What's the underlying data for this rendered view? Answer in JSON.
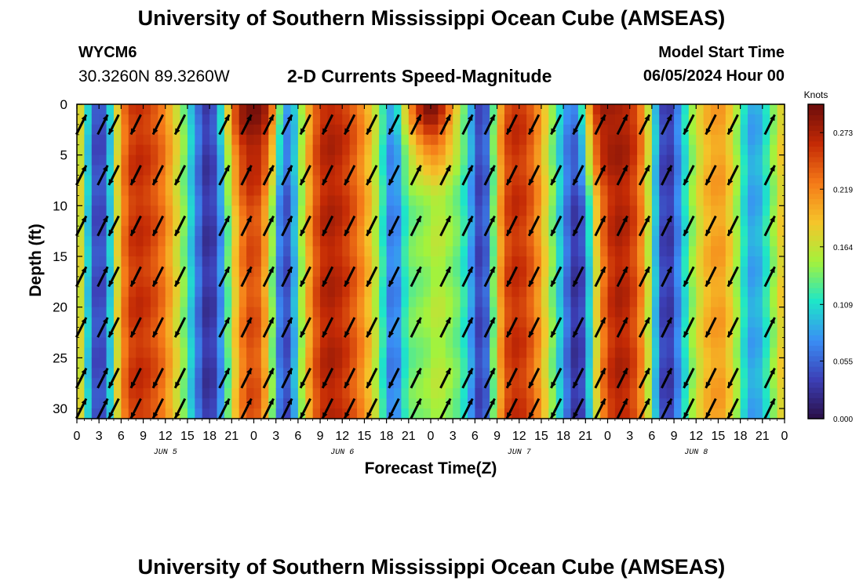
{
  "header": {
    "title": "University of Southern Mississippi Ocean Cube (AMSEAS)",
    "station_id": "WYCM6",
    "coordinates": "30.3260N  89.3260W",
    "subtitle": "2-D Currents Speed-Magnitude",
    "model_start_label": "Model Start Time",
    "model_start_value": "06/05/2024 Hour 00"
  },
  "footer": {
    "title": "University of Southern Mississippi Ocean Cube (AMSEAS)"
  },
  "chart_data": {
    "type": "heatmap",
    "title": "2-D Currents Speed-Magnitude",
    "xlabel": "Forecast Time(Z)",
    "ylabel": "Depth (ft)",
    "xlim": [
      0,
      96
    ],
    "ylim": [
      0,
      31
    ],
    "y_inverted": true,
    "x_tick_hours": [
      0,
      3,
      6,
      9,
      12,
      15,
      18,
      21,
      24,
      27,
      30,
      33,
      36,
      39,
      42,
      45,
      48,
      51,
      54,
      57,
      60,
      63,
      66,
      69,
      72,
      75,
      78,
      81,
      84,
      87,
      90,
      93,
      96
    ],
    "x_tick_labels": [
      "0",
      "3",
      "6",
      "9",
      "12",
      "15",
      "18",
      "21",
      "0",
      "3",
      "6",
      "9",
      "12",
      "15",
      "18",
      "21",
      "0",
      "3",
      "6",
      "9",
      "12",
      "15",
      "18",
      "21",
      "0",
      "3",
      "6",
      "9",
      "12",
      "15",
      "18",
      "21",
      "0"
    ],
    "day_labels": [
      {
        "hour": 12,
        "label": "JUN 5"
      },
      {
        "hour": 36,
        "label": "JUN 6"
      },
      {
        "hour": 60,
        "label": "JUN 7"
      },
      {
        "hour": 84,
        "label": "JUN 8"
      }
    ],
    "y_ticks": [
      0,
      5,
      10,
      15,
      20,
      25,
      30
    ],
    "colorbar": {
      "label": "Knots",
      "min": 0.0,
      "max": 0.3,
      "ticks": [
        0.0,
        0.055,
        0.109,
        0.164,
        0.219,
        0.273
      ],
      "tick_labels": [
        "0.000",
        "0.055",
        "0.109",
        "0.164",
        "0.219",
        "0.273"
      ],
      "colors": [
        "#2a0f47",
        "#3c3fb6",
        "#3a8ef5",
        "#1ee6c8",
        "#a4f23c",
        "#f5c52a",
        "#f57a18",
        "#c42a05",
        "#6b0c0b"
      ]
    },
    "speed_profile": {
      "hours": [
        0,
        1,
        2,
        3,
        4,
        5,
        6,
        7,
        8,
        9,
        10,
        11,
        12,
        13,
        14,
        15,
        16,
        17,
        18,
        19,
        20,
        21,
        22,
        23,
        24,
        25,
        26,
        27,
        28,
        29,
        30,
        31,
        32,
        33,
        34,
        35,
        36,
        37,
        38,
        39,
        40,
        41,
        42,
        43,
        44,
        45,
        46,
        47,
        48,
        49,
        50,
        51,
        52,
        53,
        54,
        55,
        56,
        57,
        58,
        59,
        60,
        61,
        62,
        63,
        64,
        65,
        66,
        67,
        68,
        69,
        70,
        71,
        72,
        73,
        74,
        75,
        76,
        77,
        78,
        79,
        80,
        81,
        82,
        83,
        84,
        85,
        86,
        87,
        88,
        89,
        90,
        91,
        92,
        93,
        94,
        95,
        96
      ],
      "knots": [
        0.2,
        0.14,
        0.06,
        0.03,
        0.06,
        0.14,
        0.21,
        0.25,
        0.26,
        0.26,
        0.25,
        0.24,
        0.22,
        0.19,
        0.16,
        0.12,
        0.08,
        0.04,
        0.02,
        0.05,
        0.1,
        0.16,
        0.21,
        0.24,
        0.25,
        0.23,
        0.18,
        0.1,
        0.03,
        0.06,
        0.12,
        0.18,
        0.23,
        0.26,
        0.27,
        0.27,
        0.26,
        0.25,
        0.23,
        0.21,
        0.18,
        0.14,
        0.09,
        0.05,
        0.1,
        0.13,
        0.14,
        0.14,
        0.15,
        0.16,
        0.15,
        0.14,
        0.13,
        0.1,
        0.06,
        0.02,
        0.09,
        0.18,
        0.24,
        0.26,
        0.26,
        0.25,
        0.23,
        0.2,
        0.16,
        0.12,
        0.08,
        0.04,
        0.02,
        0.06,
        0.14,
        0.21,
        0.25,
        0.27,
        0.27,
        0.26,
        0.24,
        0.2,
        0.13,
        0.06,
        0.02,
        0.05,
        0.09,
        0.13,
        0.16,
        0.19,
        0.2,
        0.21,
        0.2,
        0.17,
        0.13,
        0.09,
        0.08,
        0.1,
        0.13,
        0.16,
        0.2
      ]
    },
    "surface_peaks": [
      {
        "hour": 24,
        "depth_extent_ft": 9,
        "knots": 0.29
      },
      {
        "hour": 48,
        "depth_extent_ft": 7,
        "knots": 0.29
      },
      {
        "hour": 72,
        "depth_extent_ft": 10,
        "knots": 0.28
      }
    ],
    "vector_columns": [
      {
        "hour": 0.6,
        "dir": "NE"
      },
      {
        "hour": 3.5,
        "dir": "NE"
      },
      {
        "hour": 5.0,
        "dir": "SW"
      },
      {
        "hour": 8.0,
        "dir": "SW"
      },
      {
        "hour": 11.0,
        "dir": "SW"
      },
      {
        "hour": 14.0,
        "dir": "SW"
      },
      {
        "hour": 20.0,
        "dir": "NE"
      },
      {
        "hour": 23.0,
        "dir": "NE"
      },
      {
        "hour": 26.0,
        "dir": "NE"
      },
      {
        "hour": 28.5,
        "dir": "NE"
      },
      {
        "hour": 31.0,
        "dir": "SW"
      },
      {
        "hour": 34.0,
        "dir": "SW"
      },
      {
        "hour": 37.0,
        "dir": "SW"
      },
      {
        "hour": 40.0,
        "dir": "SW"
      },
      {
        "hour": 43.0,
        "dir": "SW"
      },
      {
        "hour": 46.0,
        "dir": "NE"
      },
      {
        "hour": 50.0,
        "dir": "NE"
      },
      {
        "hour": 53.0,
        "dir": "NE"
      },
      {
        "hour": 56.0,
        "dir": "NE"
      },
      {
        "hour": 59.0,
        "dir": "SW"
      },
      {
        "hour": 62.0,
        "dir": "SW"
      },
      {
        "hour": 65.0,
        "dir": "SW"
      },
      {
        "hour": 68.0,
        "dir": "SW"
      },
      {
        "hour": 71.0,
        "dir": "NE"
      },
      {
        "hour": 74.0,
        "dir": "NE"
      },
      {
        "hour": 77.0,
        "dir": "NE"
      },
      {
        "hour": 80.0,
        "dir": "NE"
      },
      {
        "hour": 83.0,
        "dir": "SW"
      },
      {
        "hour": 86.0,
        "dir": "SW"
      },
      {
        "hour": 89.0,
        "dir": "SW"
      },
      {
        "hour": 94.0,
        "dir": "NE"
      }
    ],
    "vector_depths_ft": [
      2,
      7,
      12,
      17,
      22,
      27,
      30
    ]
  }
}
